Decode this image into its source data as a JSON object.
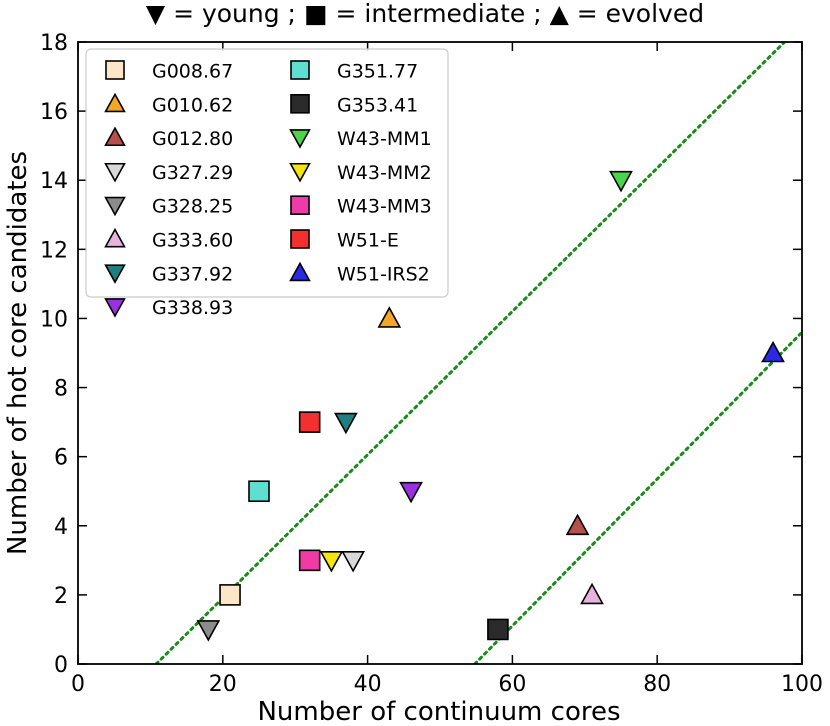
{
  "chart_data": {
    "type": "scatter",
    "title": "▼ = young ; ■ = intermediate ; ▲ = evolved",
    "xlabel": "Number of continuum cores",
    "ylabel": "Number of hot core candidates",
    "xlim": [
      0,
      100
    ],
    "ylim": [
      0,
      18
    ],
    "xticks": [
      0,
      20,
      40,
      60,
      80,
      100
    ],
    "yticks": [
      0,
      2,
      4,
      6,
      8,
      10,
      12,
      14,
      16,
      18
    ],
    "legend_position": "top-left",
    "legend_columns": 2,
    "series": [
      {
        "name": "G008.67",
        "marker": "square",
        "color": "#fde6c8",
        "x": 21,
        "y": 2
      },
      {
        "name": "G010.62",
        "marker": "triangle-up",
        "color": "#f5a623",
        "x": 43,
        "y": 10
      },
      {
        "name": "G012.80",
        "marker": "triangle-up",
        "color": "#b5504d",
        "x": 69,
        "y": 4
      },
      {
        "name": "G327.29",
        "marker": "triangle-down",
        "color": "#d9d9d9",
        "x": 38,
        "y": 3
      },
      {
        "name": "G328.25",
        "marker": "triangle-down",
        "color": "#8c8c8c",
        "x": 18,
        "y": 1
      },
      {
        "name": "G333.60",
        "marker": "triangle-up",
        "color": "#e6b3de",
        "x": 71,
        "y": 2
      },
      {
        "name": "G337.92",
        "marker": "triangle-down",
        "color": "#1f7f80",
        "x": 37,
        "y": 7
      },
      {
        "name": "G338.93",
        "marker": "triangle-down",
        "color": "#9b30e0",
        "x": 46,
        "y": 5
      },
      {
        "name": "G351.77",
        "marker": "square",
        "color": "#5de0d0",
        "x": 25,
        "y": 5
      },
      {
        "name": "G353.41",
        "marker": "square",
        "color": "#2b2b2b",
        "x": 58,
        "y": 1
      },
      {
        "name": "W43-MM1",
        "marker": "triangle-down",
        "color": "#4cd44c",
        "x": 75,
        "y": 14
      },
      {
        "name": "W43-MM2",
        "marker": "triangle-down",
        "color": "#f5e50f",
        "x": 35,
        "y": 3
      },
      {
        "name": "W43-MM3",
        "marker": "square",
        "color": "#f03aa5",
        "x": 32,
        "y": 3
      },
      {
        "name": "W51-E",
        "marker": "square",
        "color": "#f23030",
        "x": 32,
        "y": 7
      },
      {
        "name": "W51-IRS2",
        "marker": "triangle-up",
        "color": "#2a2ae6",
        "x": 96,
        "y": 9
      }
    ],
    "reference_lines": [
      {
        "style": "dotted",
        "color": "#1a8a1a",
        "x": [
          10.8,
          100
        ],
        "y": [
          0,
          18.5
        ]
      },
      {
        "style": "dotted",
        "color": "#1a8a1a",
        "x": [
          54.8,
          100
        ],
        "y": [
          0,
          9.6
        ]
      }
    ]
  }
}
